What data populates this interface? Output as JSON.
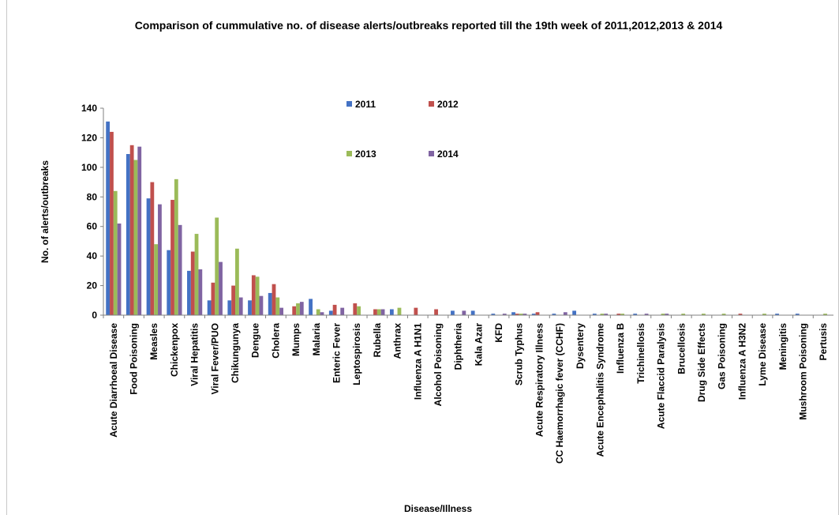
{
  "chart_data": {
    "type": "bar",
    "title": "Comparison of cummulative no. of disease alerts/outbreaks reported till the 19th week of 2011,2012,2013 & 2014",
    "xlabel": "Disease/Illness",
    "ylabel": "No. of alerts/outbreaks",
    "ylim": [
      0,
      140
    ],
    "yticks": [
      "0",
      "20",
      "40",
      "60",
      "80",
      "100",
      "120",
      "140"
    ],
    "grid": false,
    "legend_position": "top-center",
    "categories": [
      "Acute Diarrhoeal Disease",
      "Food Poisoning",
      "Measles",
      "Chickenpox",
      "Viral Hepatitis",
      "Viral Fever/PUO",
      "Chikungunya",
      "Dengue",
      "Cholera",
      "Mumps",
      "Malaria",
      "Enteric Fever",
      "Leptospirosis",
      "Rubella",
      "Anthrax",
      "Influenza A H1N1",
      "Alcohol Poisoning",
      "Diphtheria",
      "Kala Azar",
      "KFD",
      "Scrub Typhus",
      "Acute Respiratory Illness",
      "CC Haemorrhagic fever (CCHF)",
      "Dysentery",
      "Acute Encephalitis Syndrome",
      "Influenza B",
      "Trichinellosis",
      "Acute Flaccid Paralysis",
      "Brucellosis",
      "Drug Side Effects",
      "Gas Poisoning",
      "Influenza A H3N2",
      "Lyme Disease",
      "Meningitis",
      "Mushroom Poisoning",
      "Pertusis"
    ],
    "series": [
      {
        "name": "2011",
        "color": "#4472c4",
        "values": [
          131,
          109,
          79,
          44,
          30,
          10,
          10,
          10,
          15,
          0,
          11,
          3,
          0,
          0,
          4,
          0,
          0,
          3,
          3,
          1,
          2,
          1,
          1,
          3,
          1,
          0,
          1,
          0,
          0,
          0,
          0,
          0,
          0,
          1,
          1,
          0
        ]
      },
      {
        "name": "2012",
        "color": "#c0504d",
        "values": [
          124,
          115,
          90,
          78,
          43,
          22,
          20,
          27,
          21,
          6,
          0,
          7,
          8,
          4,
          0,
          5,
          4,
          0,
          0,
          0,
          1,
          2,
          0,
          0,
          0,
          1,
          0,
          0,
          0,
          0,
          0,
          1,
          0,
          0,
          0,
          0
        ]
      },
      {
        "name": "2013",
        "color": "#9bbb59",
        "values": [
          84,
          105,
          48,
          92,
          55,
          66,
          45,
          26,
          12,
          8,
          4,
          0,
          6,
          4,
          5,
          0,
          0,
          0,
          0,
          0,
          1,
          0,
          0,
          0,
          1,
          1,
          0,
          1,
          1,
          1,
          1,
          0,
          1,
          0,
          0,
          1
        ]
      },
      {
        "name": "2014",
        "color": "#8064a2",
        "values": [
          62,
          114,
          75,
          61,
          31,
          36,
          12,
          13,
          5,
          9,
          2,
          5,
          0,
          4,
          0,
          0,
          0,
          3,
          0,
          1,
          1,
          0,
          2,
          0,
          1,
          0,
          1,
          1,
          0,
          0,
          0,
          0,
          0,
          0,
          0,
          0
        ]
      }
    ]
  }
}
